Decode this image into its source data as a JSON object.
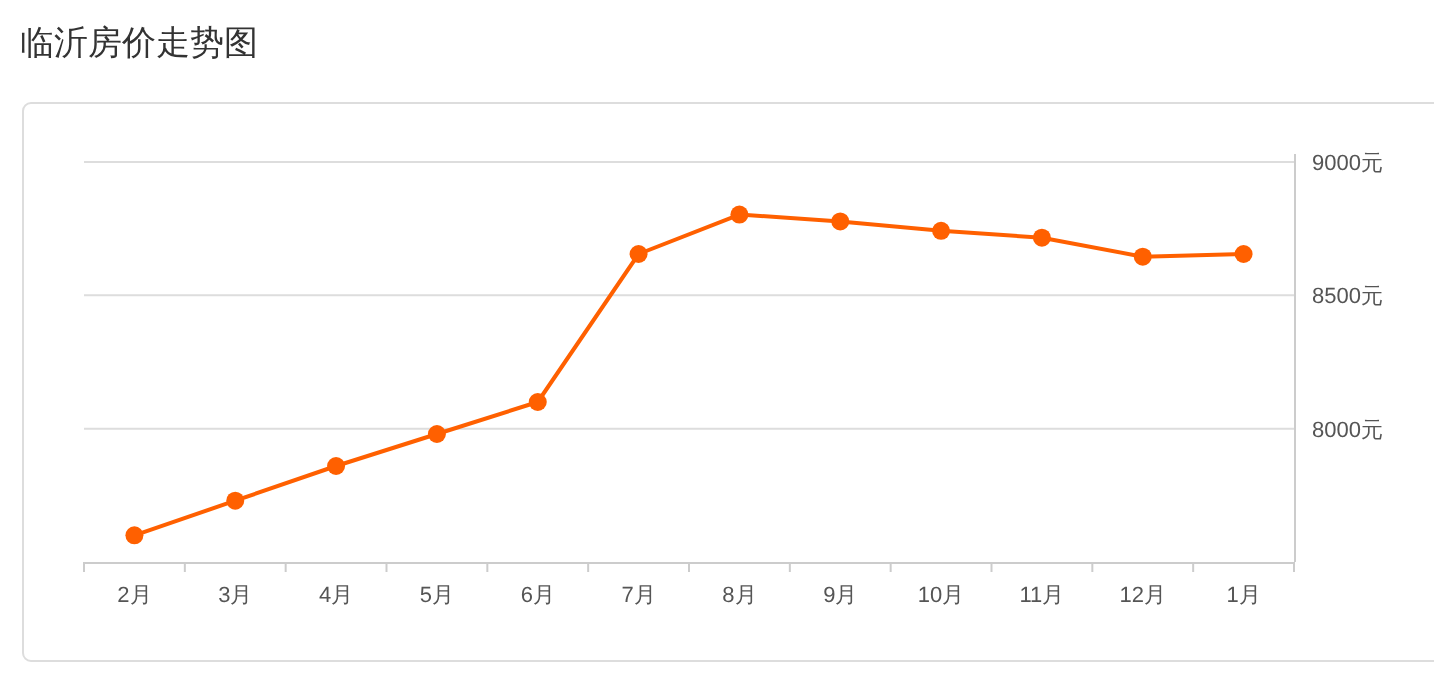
{
  "chart_data": {
    "type": "line",
    "title": "临沂房价走势图",
    "categories": [
      "2月",
      "3月",
      "4月",
      "5月",
      "6月",
      "7月",
      "8月",
      "9月",
      "10月",
      "11月",
      "12月",
      "1月"
    ],
    "series": [
      {
        "color": "#ff6000",
        "values": [
          7600,
          7730,
          7860,
          7980,
          8100,
          8655,
          8803,
          8777,
          8742,
          8716,
          8645,
          8655
        ]
      }
    ],
    "ylim": [
      7500,
      9000
    ],
    "yticks": [
      {
        "value": 8000,
        "label": "8000元"
      },
      {
        "value": 8500,
        "label": "8500元"
      },
      {
        "value": 9000,
        "label": "9000元"
      }
    ],
    "grid": "y",
    "marker": "circle",
    "line_style": "solid"
  }
}
